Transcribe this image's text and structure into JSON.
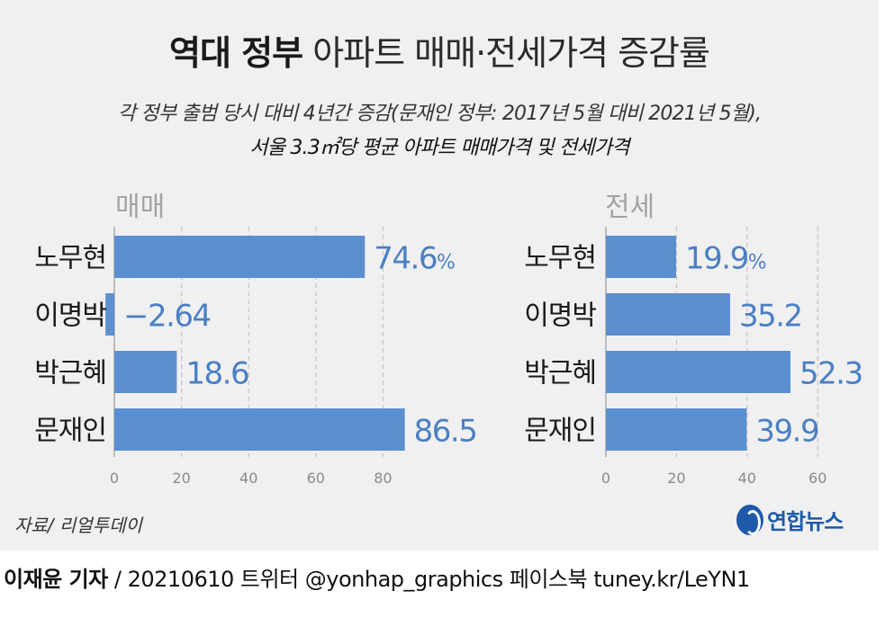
{
  "header": {
    "title_bold": "역대 정부",
    "title_light": "아파트 매매·전세가격 증감률",
    "subtitle_line1": "각 정부 출범 당시 대비 4년간 증감(문재인 정부: 2017년 5월 대비 2021년 5월),",
    "subtitle_line2": "서울 3.3㎡당 평균 아파트 매매가격 및 전세가격"
  },
  "chart_data": [
    {
      "type": "bar",
      "orientation": "horizontal",
      "title": "매매",
      "categories": [
        "노무현",
        "이명박",
        "박근혜",
        "문재인"
      ],
      "values": [
        74.6,
        -2.64,
        18.6,
        86.5
      ],
      "value_labels": [
        "74.6",
        "−2.64",
        "18.6",
        "86.5"
      ],
      "unit": "%",
      "xticks": [
        0,
        20,
        40,
        60,
        80
      ],
      "xlim": [
        0,
        100
      ],
      "grid": true,
      "bar_color": "#5b8fd0"
    },
    {
      "type": "bar",
      "orientation": "horizontal",
      "title": "전세",
      "categories": [
        "노무현",
        "이명박",
        "박근혜",
        "문재인"
      ],
      "values": [
        19.9,
        35.2,
        52.3,
        39.9
      ],
      "value_labels": [
        "19.9",
        "35.2",
        "52.3",
        "39.9"
      ],
      "unit": "%",
      "xticks": [
        0,
        20,
        40,
        60
      ],
      "xlim": [
        0,
        60
      ],
      "grid": true,
      "bar_color": "#5b8fd0"
    }
  ],
  "footer": {
    "source": "자료/ 리얼투데이",
    "logo_text": "연합뉴스",
    "credit_bold": "이재윤 기자",
    "credit_rest": " / 20210610   트위터 @yonhap_graphics  페이스북 tuney.kr/LeYN1"
  }
}
